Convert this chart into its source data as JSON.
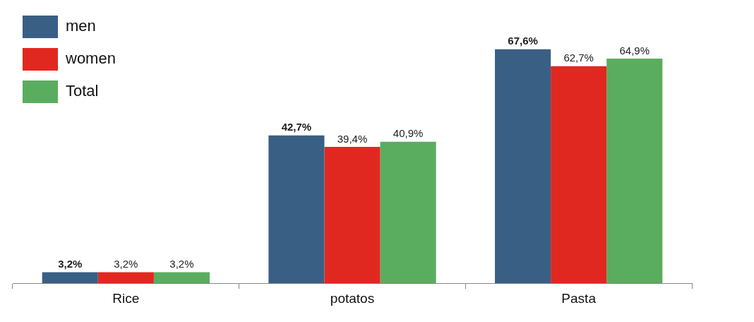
{
  "chart_data": {
    "type": "bar",
    "categories": [
      "Rice",
      "potatos",
      "Pasta"
    ],
    "series": [
      {
        "name": "men",
        "color": "#3a5f85",
        "values": [
          3.2,
          42.7,
          67.6
        ],
        "value_labels": [
          "3,2%",
          "42,7%",
          "67,6%"
        ]
      },
      {
        "name": "women",
        "color": "#e02820",
        "values": [
          3.2,
          39.4,
          62.7
        ],
        "value_labels": [
          "3,2%",
          "39,4%",
          "62,7%"
        ]
      },
      {
        "name": "Total",
        "color": "#5aad5e",
        "values": [
          3.2,
          40.9,
          64.9
        ],
        "value_labels": [
          "3,2%",
          "40,9%",
          "64,9%"
        ]
      }
    ],
    "legend": "top left",
    "tick_labels": "x"
  }
}
